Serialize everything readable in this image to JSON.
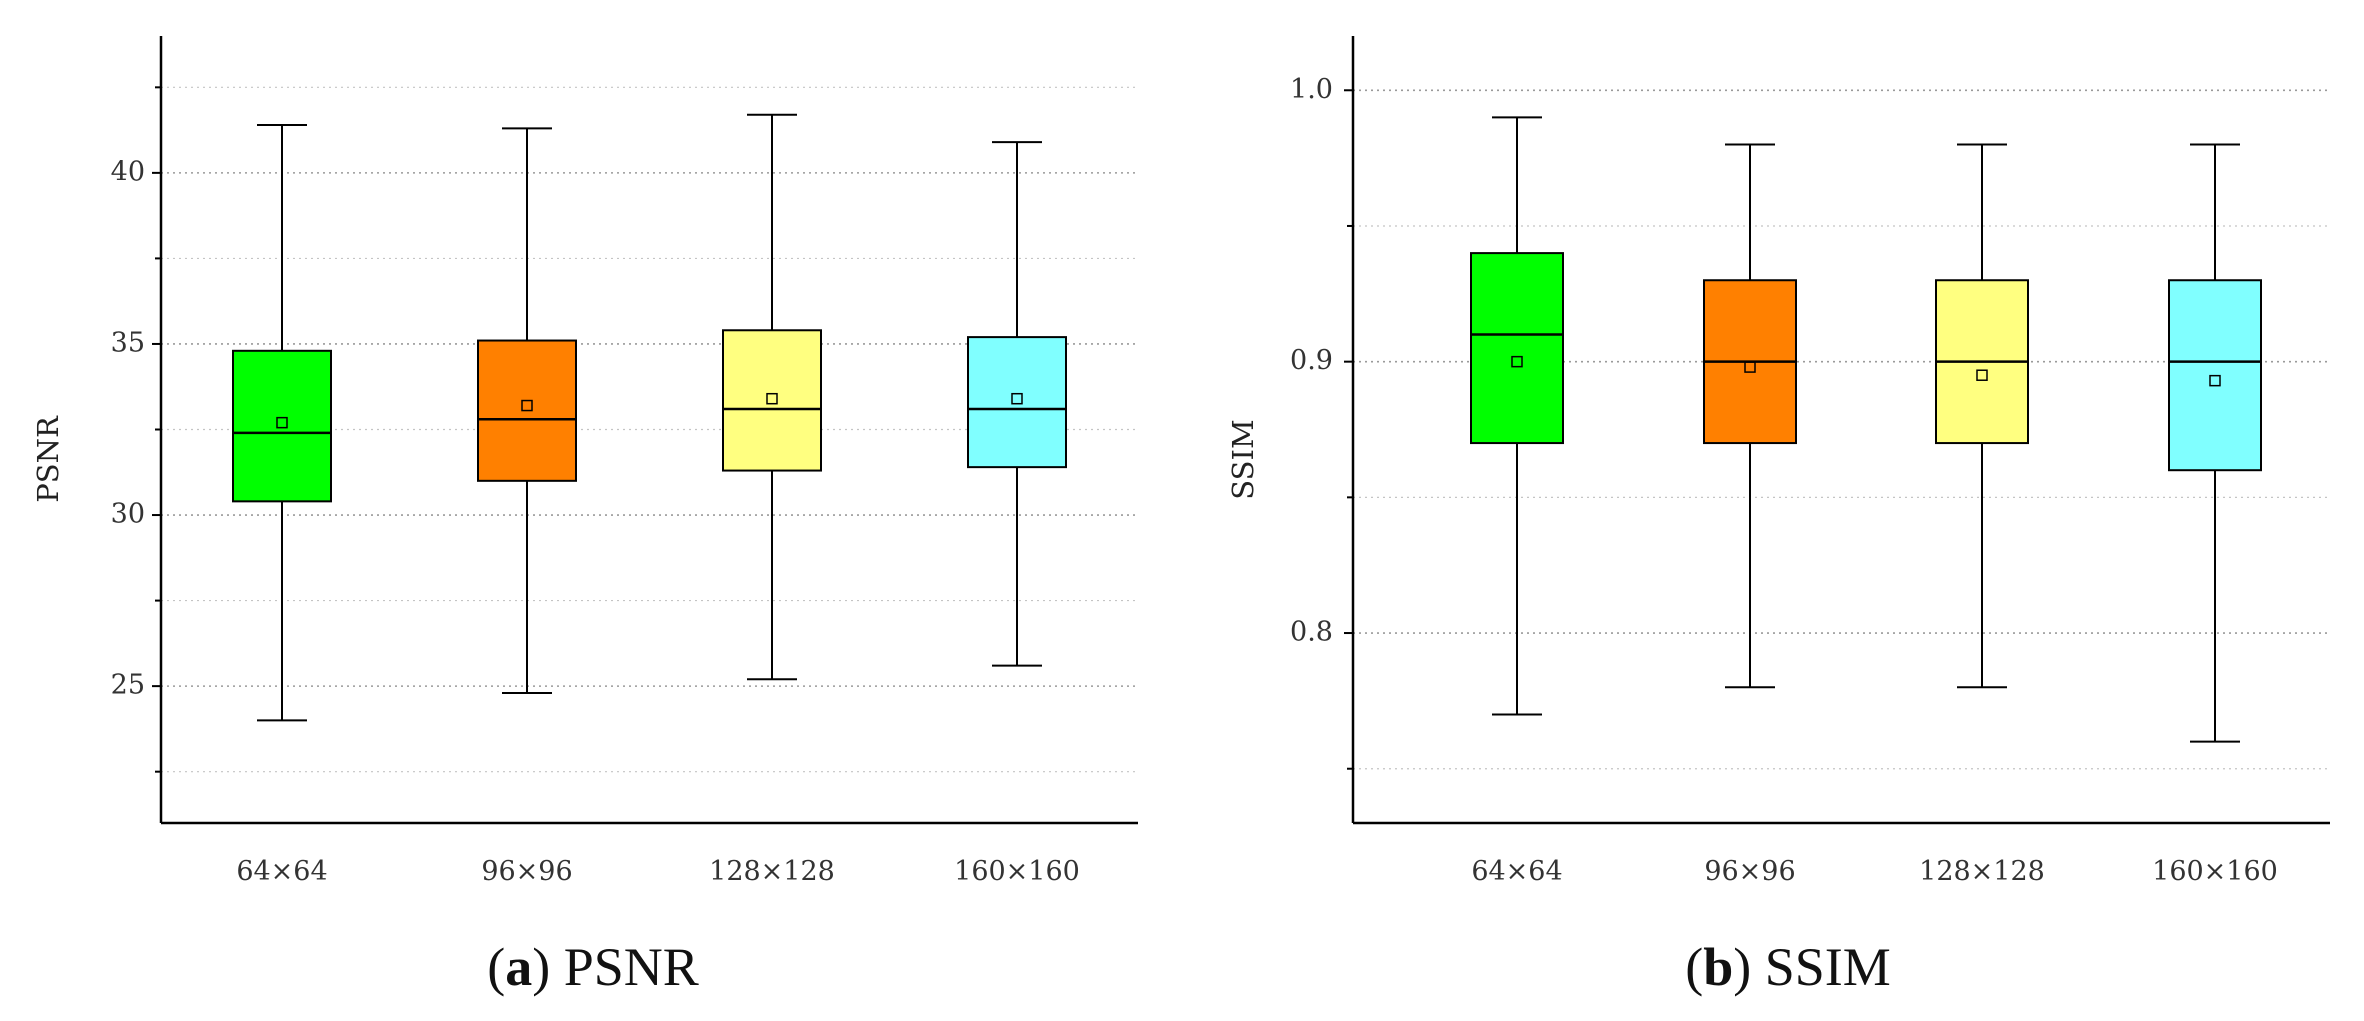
{
  "chart_data": [
    {
      "type": "box",
      "caption": {
        "letter": "a",
        "text": "PSNR"
      },
      "ylabel": "PSNR",
      "xlabel": "",
      "categories": [
        "64×64",
        "96×96",
        "128×128",
        "160×160"
      ],
      "ylim": [
        21,
        44
      ],
      "yticks": [
        25,
        30,
        35,
        40
      ],
      "ytick_labels": [
        "25",
        "30",
        "35",
        "40"
      ],
      "grid": true,
      "series": [
        {
          "category": "64×64",
          "min": 24.0,
          "q1": 30.4,
          "median": 32.4,
          "q3": 34.8,
          "max": 41.4,
          "mean": 32.7,
          "color": "#00ff00"
        },
        {
          "category": "96×96",
          "min": 24.8,
          "q1": 31.0,
          "median": 32.8,
          "q3": 35.1,
          "max": 41.3,
          "mean": 33.2,
          "color": "#ff8000"
        },
        {
          "category": "128×128",
          "min": 25.2,
          "q1": 31.3,
          "median": 33.1,
          "q3": 35.4,
          "max": 41.7,
          "mean": 33.4,
          "color": "#ffff80"
        },
        {
          "category": "160×160",
          "min": 25.6,
          "q1": 31.4,
          "median": 33.1,
          "q3": 35.2,
          "max": 40.9,
          "mean": 33.4,
          "color": "#80ffff"
        }
      ]
    },
    {
      "type": "box",
      "caption": {
        "letter": "b",
        "text": "SSIM"
      },
      "ylabel": "SSIM",
      "xlabel": "",
      "categories": [
        "64×64",
        "96×96",
        "128×128",
        "160×160"
      ],
      "ylim": [
        0.73,
        1.02
      ],
      "yticks": [
        0.8,
        0.9,
        1.0
      ],
      "ytick_labels": [
        "0.8",
        "0.9",
        "1.0"
      ],
      "grid": true,
      "series": [
        {
          "category": "64×64",
          "min": 0.77,
          "q1": 0.87,
          "median": 0.91,
          "q3": 0.94,
          "max": 0.99,
          "mean": 0.9,
          "color": "#00ff00"
        },
        {
          "category": "96×96",
          "min": 0.78,
          "q1": 0.87,
          "median": 0.9,
          "q3": 0.93,
          "max": 0.98,
          "mean": 0.898,
          "color": "#ff8000"
        },
        {
          "category": "128×128",
          "min": 0.78,
          "q1": 0.87,
          "median": 0.9,
          "q3": 0.93,
          "max": 0.98,
          "mean": 0.895,
          "color": "#ffff80"
        },
        {
          "category": "160×160",
          "min": 0.76,
          "q1": 0.86,
          "median": 0.9,
          "q3": 0.93,
          "max": 0.98,
          "mean": 0.893,
          "color": "#80ffff"
        }
      ]
    }
  ]
}
